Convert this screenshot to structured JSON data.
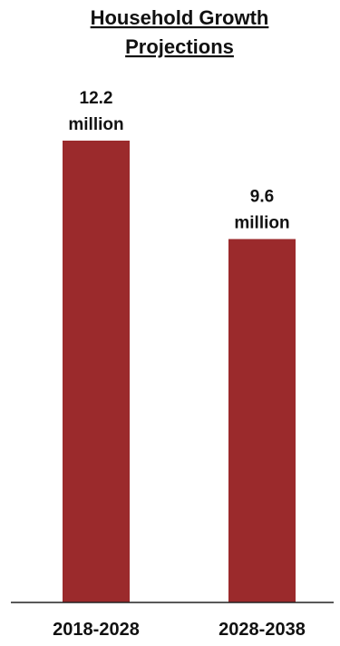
{
  "chart_data": {
    "type": "bar",
    "title_lines": [
      "Household Growth",
      "Projections"
    ],
    "categories": [
      "2018-2028",
      "2028-2038"
    ],
    "values": [
      12.2,
      9.6
    ],
    "value_labels": [
      [
        "12.2",
        "million"
      ],
      [
        "9.6",
        "million"
      ]
    ],
    "unit": "million",
    "xlabel": "",
    "ylabel": "",
    "ylim": [
      0,
      12.2
    ],
    "grid": false,
    "legend": "none",
    "bar_color": "#9b2a2c",
    "axis_color": "#222222"
  }
}
